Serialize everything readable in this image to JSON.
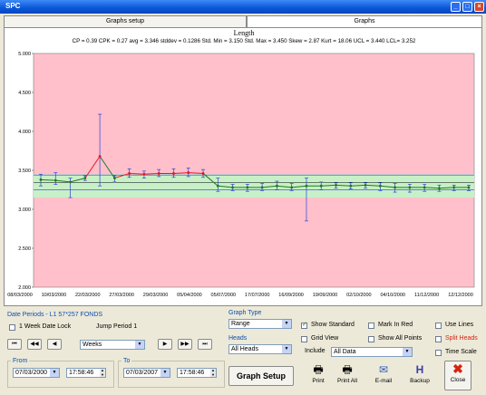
{
  "window": {
    "title": "SPC"
  },
  "tabs": [
    {
      "label": "Graphs setup",
      "active": false
    },
    {
      "label": "Graphs",
      "active": true
    }
  ],
  "chart_data": {
    "type": "line",
    "title": "Length",
    "subtitle": "CP = 0.39  CPK = 0.27  avg = 3.346  stddev = 0.1286  Std. Min = 3.150  Std. Max = 3.450  Skew = 2.87  Kurt = 18.06  UCL = 3.440  LCL= 3.252",
    "ylim": [
      2.0,
      5.0
    ],
    "yticks": [
      "5.000",
      "4.500",
      "4.000",
      "3.500",
      "3.000",
      "2.500",
      "2.000"
    ],
    "ytick_values": [
      5.0,
      4.5,
      4.0,
      3.5,
      3.0,
      2.5,
      2.0
    ],
    "xtick_labels": [
      "08/03/2000",
      "10/03/2000",
      "22/03/2000",
      "27/03/2000",
      "29/03/2000",
      "05/04/2000",
      "05/07/2000",
      "17/07/2000",
      "16/09/2000",
      "19/09/2000",
      "02/10/2000",
      "04/10/2000",
      "11/12/2000",
      "12/12/2000"
    ],
    "points": [
      3.38,
      3.37,
      3.35,
      3.4,
      3.68,
      3.4,
      3.46,
      3.45,
      3.46,
      3.46,
      3.47,
      3.46,
      3.3,
      3.28,
      3.28,
      3.28,
      3.3,
      3.28,
      3.3,
      3.3,
      3.31,
      3.3,
      3.31,
      3.3,
      3.28,
      3.28,
      3.28,
      3.27,
      3.28,
      3.28
    ],
    "high": [
      3.45,
      3.47,
      3.4,
      3.43,
      4.22,
      3.43,
      3.52,
      3.49,
      3.51,
      3.52,
      3.53,
      3.51,
      3.4,
      3.32,
      3.32,
      3.33,
      3.36,
      3.33,
      3.4,
      3.35,
      3.34,
      3.34,
      3.34,
      3.34,
      3.33,
      3.32,
      3.32,
      3.31,
      3.31,
      3.31
    ],
    "low": [
      3.3,
      3.32,
      3.15,
      3.37,
      3.3,
      3.35,
      3.41,
      3.4,
      3.42,
      3.41,
      3.42,
      3.41,
      3.23,
      3.24,
      3.23,
      3.24,
      3.25,
      3.24,
      2.85,
      3.25,
      3.27,
      3.26,
      3.27,
      3.24,
      3.22,
      3.22,
      3.23,
      3.23,
      3.24,
      3.24
    ],
    "point_colors": [
      "#1f7a1f",
      "#1f7a1f",
      "#1f7a1f",
      "#1f7a1f",
      "#e8141e",
      "#1f7a1f",
      "#e8141e",
      "#e8141e",
      "#e8141e",
      "#e8141e",
      "#e8141e",
      "#e8141e",
      "#1f7a1f",
      "#1f7a1f",
      "#1f7a1f",
      "#1f7a1f",
      "#1f7a1f",
      "#1f7a1f",
      "#1f7a1f",
      "#1f7a1f",
      "#1f7a1f",
      "#1f7a1f",
      "#1f7a1f",
      "#1f7a1f",
      "#1f7a1f",
      "#1f7a1f",
      "#1f7a1f",
      "#1f7a1f",
      "#1f7a1f",
      "#1f7a1f"
    ],
    "standard_band": [
      3.15,
      3.45
    ],
    "ucl": 3.44,
    "lcl": 3.252,
    "avg": 3.346,
    "colors": {
      "outside": "#ffc0cb",
      "band": "#c8f0c8",
      "line": "#1f7a1f",
      "whisker": "#2d3fd8",
      "limit": "#2d3fd8",
      "avg": "#000000"
    }
  },
  "date_periods": {
    "heading": "Date Periods - L1  57*257 FONDS",
    "week_lock_label": "1 Week Date Lock",
    "week_lock": false,
    "jump_period_label": "Jump Period 1",
    "period_value": "Weeks",
    "from_label": "From",
    "to_label": "To",
    "from_date": "07/03/2000",
    "from_time": "17:58:46",
    "to_date": "07/03/2007",
    "to_time": "17:58:46"
  },
  "graph_type": {
    "label": "Graph Type",
    "value": "Range"
  },
  "heads": {
    "label": "Heads",
    "value": "All Heads"
  },
  "graph_setup_button": "Graph Setup",
  "options": {
    "show_standard": {
      "label": "Show Standard",
      "checked": true
    },
    "grid_view": {
      "label": "Grid View",
      "checked": false
    },
    "mark_in_red": {
      "label": "Mark In Red",
      "checked": false
    },
    "show_all_points": {
      "label": "Show All Points",
      "checked": false
    },
    "use_lines": {
      "label": "Use Lines",
      "checked": false
    },
    "split_heads": {
      "label": "Split Heads",
      "checked": false
    },
    "time_scale": {
      "label": "Time Scale",
      "checked": false
    },
    "include_label": "Include",
    "include_value": "All Data"
  },
  "toolbar": {
    "print": {
      "label": "Print",
      "icon": "printer-icon"
    },
    "print_all": {
      "label": "Print All",
      "icon": "printer-stack-icon"
    },
    "email": {
      "label": "E-mail",
      "icon": "envelope-icon"
    },
    "backup": {
      "label": "Backup",
      "icon": "backup-icon"
    },
    "close": {
      "label": "Close",
      "icon": "close-x-icon"
    }
  }
}
